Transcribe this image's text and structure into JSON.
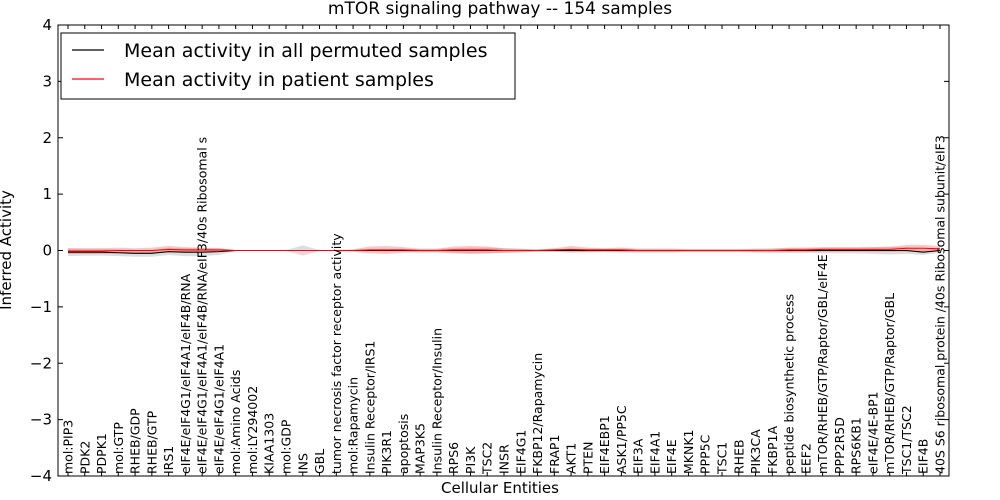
{
  "chart_data": {
    "type": "line",
    "title": "mTOR signaling pathway -- 154 samples",
    "xlabel": "Cellular Entities",
    "ylabel": "Inferred Activity",
    "ylim": [
      -4,
      4
    ],
    "yticks": [
      -4,
      -3,
      -2,
      -1,
      0,
      1,
      2,
      3,
      4
    ],
    "ytick_labels": [
      "−4",
      "−3",
      "−2",
      "−1",
      "0",
      "1",
      "2",
      "3",
      "4"
    ],
    "grid": false,
    "legend_position": "top-left",
    "categories": [
      "mol:PIP3",
      "PDK2",
      "PDPK1",
      "mol:GTP",
      "RHEB/GDP",
      "RHEB/GTP",
      "IRS1",
      "eIF4E/eIF4G1/eIF4A1/eIF4B/RNA",
      "eIF4E/eIF4G1/eIF4A1/eIF4B/RNA/eIF3/40s Ribosomal s",
      "eIF4E/eIF4G1/eIF4A1",
      "mol:Amino Acids",
      "mol:LY294002",
      "KIAA1303",
      "mol:GDP",
      "INS",
      "GBL",
      "tumor necrosis factor receptor activity",
      "mol:Rapamycin",
      "Insulin Receptor/IRS1",
      "PIK3R1",
      "apoptosis",
      "MAP3K5",
      "Insulin Receptor/Insulin",
      "RPS6",
      "PI3K",
      "TSC2",
      "INSR",
      "EIF4G1",
      "FKBP12/Rapamycin",
      "FRAP1",
      "AKT1",
      "PTEN",
      "EIF4EBP1",
      "ASK1/PP5C",
      "EIF3A",
      "EIF4A1",
      "EIF4E",
      "MKNK1",
      "PPP5C",
      "TSC1",
      "RHEB",
      "PIK3CA",
      "FKBP1A",
      "peptide biosynthetic process",
      "EEF2",
      "mTOR/RHEB/GTP/Raptor/GBL/eIF4E",
      "PPP2R5D",
      "RPS6KB1",
      "eIF4E/4E-BP1",
      "mTOR/RHEB/GTP/Raptor/GBL",
      "TSC1/TSC2",
      "EIF4B",
      "40S S6 ribosomal protein /40s Ribosomal subunit/eIF3"
    ],
    "series": [
      {
        "name": "Mean activity in all permuted samples",
        "color": "#000000",
        "values": [
          -0.03,
          -0.03,
          -0.03,
          -0.04,
          -0.05,
          -0.05,
          -0.02,
          -0.03,
          -0.03,
          -0.02,
          0,
          0,
          0,
          0,
          0,
          0,
          0,
          0,
          0,
          0,
          0,
          0,
          0,
          0,
          0,
          0,
          0,
          0,
          0,
          0,
          0,
          0,
          0,
          0,
          0,
          0,
          0,
          0,
          0,
          0,
          0,
          0,
          0,
          0,
          0,
          0,
          0,
          0,
          0,
          0,
          0,
          -0.03,
          0
        ],
        "band": [
          0.07,
          0.06,
          0.06,
          0.06,
          0.06,
          0.06,
          0.06,
          0.07,
          0.07,
          0.06,
          0.01,
          0.01,
          0.01,
          0.01,
          0.09,
          0.01,
          0.01,
          0.01,
          0.02,
          0.02,
          0.02,
          0.03,
          0.03,
          0.04,
          0.05,
          0.05,
          0.04,
          0.03,
          0.02,
          0.02,
          0.02,
          0.03,
          0.03,
          0.03,
          0.03,
          0.03,
          0.03,
          0.03,
          0.03,
          0.03,
          0.03,
          0.03,
          0.04,
          0.04,
          0.04,
          0.05,
          0.05,
          0.05,
          0.06,
          0.07,
          0.06,
          0.05,
          0.04
        ]
      },
      {
        "name": "Mean activity in patient samples",
        "color": "#ff0000",
        "values": [
          -0.01,
          -0.01,
          -0.01,
          0,
          0,
          0,
          0.02,
          0.01,
          0.01,
          0.01,
          0,
          0,
          0,
          0,
          0,
          0,
          0,
          0,
          0.01,
          0.01,
          0.01,
          0,
          0,
          0.01,
          0.01,
          0.01,
          0,
          0,
          0,
          0.01,
          0.02,
          0.01,
          0.01,
          0.01,
          0,
          0,
          0,
          0,
          0,
          0,
          0,
          0,
          0,
          0.01,
          0.01,
          0.02,
          0.02,
          0.02,
          0.02,
          0.02,
          0.04,
          0.04,
          0.03
        ],
        "band": [
          0.05,
          0.05,
          0.05,
          0.05,
          0.04,
          0.05,
          0.06,
          0.05,
          0.04,
          0.03,
          0.01,
          0.01,
          0.01,
          0.01,
          0.01,
          0.01,
          0.01,
          0.02,
          0.06,
          0.07,
          0.05,
          0.03,
          0.03,
          0.06,
          0.07,
          0.06,
          0.04,
          0.03,
          0.02,
          0.03,
          0.06,
          0.04,
          0.03,
          0.04,
          0.03,
          0.03,
          0.03,
          0.02,
          0.02,
          0.02,
          0.02,
          0.03,
          0.03,
          0.04,
          0.04,
          0.04,
          0.04,
          0.04,
          0.04,
          0.04,
          0.06,
          0.06,
          0.05
        ]
      }
    ]
  }
}
